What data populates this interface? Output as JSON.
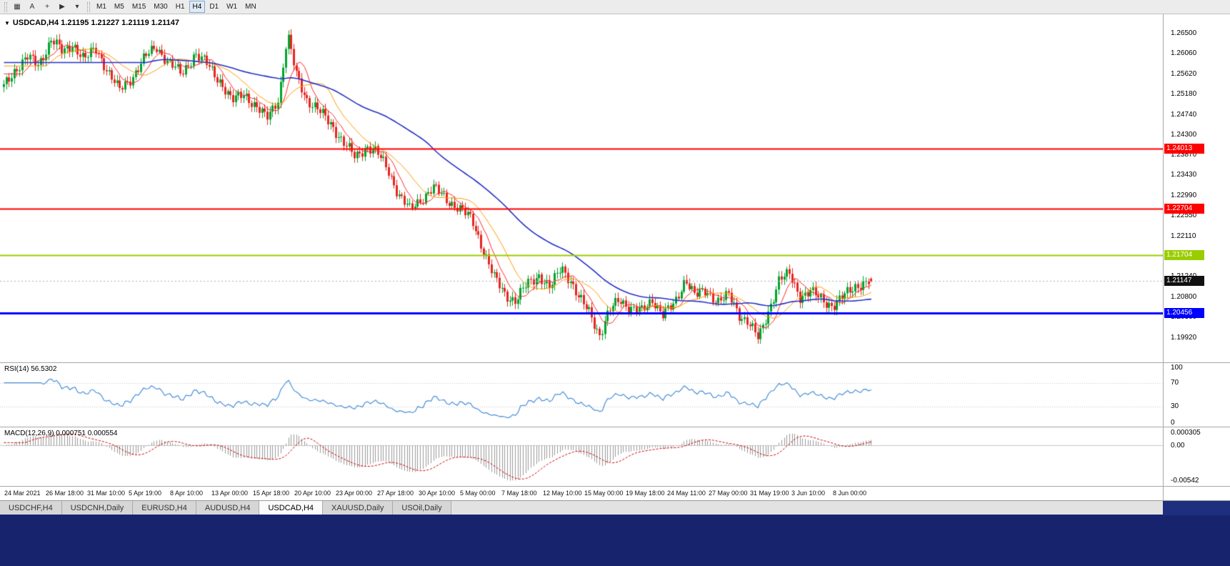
{
  "toolbar": {
    "icons": [
      {
        "name": "chart-shift-icon",
        "glyph": "▦"
      },
      {
        "name": "text-tool-icon",
        "glyph": "A"
      },
      {
        "name": "crosshair-tool-icon",
        "glyph": "+"
      },
      {
        "name": "cursor-tool-icon",
        "glyph": "▶"
      },
      {
        "name": "tools-dropdown-icon",
        "glyph": "▾"
      }
    ],
    "timeframes": [
      "M1",
      "M5",
      "M15",
      "M30",
      "H1",
      "H4",
      "D1",
      "W1",
      "MN"
    ],
    "active_timeframe": "H4"
  },
  "chart": {
    "menu_glyph": "▼",
    "title": "USDCAD,H4 1.21195 1.21227 1.21119 1.21147",
    "symbol": "USDCAD,H4"
  },
  "rsi": {
    "label": "RSI(14) 56.5302",
    "value": 56.5302,
    "ticks": [
      "100",
      "70",
      "30",
      "0"
    ],
    "levels": [
      70,
      30
    ]
  },
  "macd": {
    "label": "MACD(12,26,9) 0.000751 0.000554",
    "values": [
      "0.000751",
      "0.000554"
    ],
    "ticks": [
      "0.000305",
      "0.00",
      "-0.00542"
    ]
  },
  "tabs": {
    "items": [
      "USDCHF,H4",
      "USDCNH,Daily",
      "EURUSD,H4",
      "AUDUSD,H4",
      "USDCAD,H4",
      "XAUUSD,Daily",
      "USOil,Daily"
    ],
    "active": "USDCAD,H4"
  },
  "chart_data": {
    "type": "candlestick",
    "symbol": "USDCAD",
    "timeframe": "H4",
    "candle_count": 330,
    "ylim": [
      1.1945,
      1.2685
    ],
    "y_ticks": [
      "1.26500",
      "1.26060",
      "1.25620",
      "1.25180",
      "1.24740",
      "1.24300",
      "1.23870",
      "1.23430",
      "1.22990",
      "1.22550",
      "1.22110",
      "1.21670",
      "1.21240",
      "1.20800",
      "1.20360",
      "1.19920"
    ],
    "x_labels": [
      "24 Mar 2021",
      "26 Mar 18:00",
      "31 Mar 10:00",
      "5 Apr 19:00",
      "8 Apr 10:00",
      "13 Apr 00:00",
      "15 Apr 18:00",
      "20 Apr 10:00",
      "23 Apr 00:00",
      "27 Apr 18:00",
      "30 Apr 10:00",
      "5 May 00:00",
      "7 May 18:00",
      "12 May 10:00",
      "15 May 00:00",
      "19 May 18:00",
      "24 May 11:00",
      "27 May 00:00",
      "31 May 19:00",
      "3 Jun 10:00",
      "8 Jun 00:00"
    ],
    "hlines": [
      {
        "price": 1.24013,
        "label": "1.24013",
        "color": "#ff0000",
        "width": 2
      },
      {
        "price": 1.22704,
        "label": "1.22704",
        "color": "#ff0000",
        "width": 2
      },
      {
        "price": 1.21704,
        "label": "1.21704",
        "color": "#9acd00",
        "width": 2
      },
      {
        "price": 1.20456,
        "label": "1.20456",
        "color": "#0000ff",
        "width": 3
      }
    ],
    "current_price": {
      "value": 1.21147,
      "label": "1.21147",
      "tag_color": "#111111"
    },
    "last_candle": {
      "open": 1.21195,
      "high": 1.21227,
      "low": 1.21119,
      "close": 1.21147
    },
    "colors": {
      "up": "#00a32e",
      "down": "#e8251f",
      "ma_fast": "#ff2a2a",
      "ma_mid": "#ff9c00",
      "ma_slow": "#2430c8",
      "rsi": "#4a90d9",
      "macd_hist": "#9a9a9a",
      "macd_signal": "#d00000"
    },
    "price_path": [
      [
        0,
        1.2535
      ],
      [
        0.013,
        1.2572
      ],
      [
        0.027,
        1.2598
      ],
      [
        0.04,
        1.2582
      ],
      [
        0.055,
        1.2638
      ],
      [
        0.068,
        1.2608
      ],
      [
        0.08,
        1.2628
      ],
      [
        0.093,
        1.2592
      ],
      [
        0.106,
        1.2618
      ],
      [
        0.12,
        1.2568
      ],
      [
        0.133,
        1.2526
      ],
      [
        0.148,
        1.2556
      ],
      [
        0.163,
        1.2598
      ],
      [
        0.176,
        1.2622
      ],
      [
        0.19,
        1.2586
      ],
      [
        0.205,
        1.2562
      ],
      [
        0.22,
        1.2606
      ],
      [
        0.235,
        1.2582
      ],
      [
        0.25,
        1.2546
      ],
      [
        0.263,
        1.2502
      ],
      [
        0.277,
        1.2522
      ],
      [
        0.29,
        1.2492
      ],
      [
        0.303,
        1.2466
      ],
      [
        0.317,
        1.2512
      ],
      [
        0.327,
        1.2645
      ],
      [
        0.337,
        1.2562
      ],
      [
        0.35,
        1.2506
      ],
      [
        0.363,
        1.2482
      ],
      [
        0.377,
        1.2456
      ],
      [
        0.392,
        1.2412
      ],
      [
        0.405,
        1.2382
      ],
      [
        0.418,
        1.2406
      ],
      [
        0.43,
        1.2392
      ],
      [
        0.443,
        1.2356
      ],
      [
        0.455,
        1.2302
      ],
      [
        0.468,
        1.2268
      ],
      [
        0.481,
        1.2292
      ],
      [
        0.495,
        1.2316
      ],
      [
        0.51,
        1.2292
      ],
      [
        0.525,
        1.2272
      ],
      [
        0.54,
        1.2246
      ],
      [
        0.553,
        1.2182
      ],
      [
        0.565,
        1.2122
      ],
      [
        0.578,
        1.2086
      ],
      [
        0.59,
        1.2072
      ],
      [
        0.603,
        1.2106
      ],
      [
        0.617,
        1.2128
      ],
      [
        0.63,
        1.2098
      ],
      [
        0.643,
        1.2146
      ],
      [
        0.653,
        1.2118
      ],
      [
        0.663,
        1.2076
      ],
      [
        0.676,
        1.2046
      ],
      [
        0.687,
        1.1998
      ],
      [
        0.698,
        1.2048
      ],
      [
        0.71,
        1.2076
      ],
      [
        0.723,
        1.2056
      ],
      [
        0.736,
        1.2048
      ],
      [
        0.748,
        1.2076
      ],
      [
        0.76,
        1.2042
      ],
      [
        0.773,
        1.2062
      ],
      [
        0.786,
        1.2122
      ],
      [
        0.797,
        1.2082
      ],
      [
        0.81,
        1.2092
      ],
      [
        0.823,
        1.2072
      ],
      [
        0.836,
        1.2082
      ],
      [
        0.848,
        1.2042
      ],
      [
        0.858,
        1.2028
      ],
      [
        0.87,
        1.1988
      ],
      [
        0.882,
        1.2052
      ],
      [
        0.894,
        1.2118
      ],
      [
        0.906,
        1.2128
      ],
      [
        0.918,
        1.2082
      ],
      [
        0.93,
        1.2092
      ],
      [
        0.943,
        1.2074
      ],
      [
        0.956,
        1.2062
      ],
      [
        0.969,
        1.2082
      ],
      [
        0.983,
        1.2106
      ],
      [
        1,
        1.2115
      ]
    ]
  }
}
